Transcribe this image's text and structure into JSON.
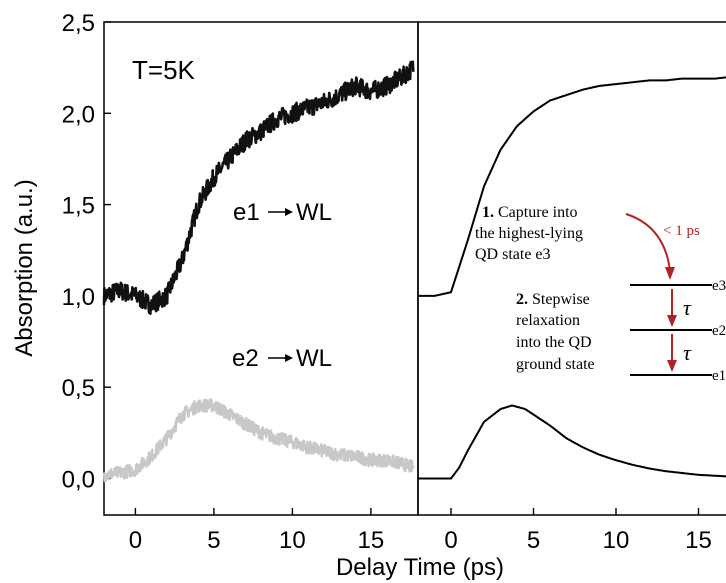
{
  "chart_data": [
    {
      "type": "line",
      "panel": "left",
      "annotation_temperature": "T=5K",
      "xlabel": "Delay Time (ps)",
      "ylabel": "Absorption (a.u.)",
      "xlim": [
        -2,
        18
      ],
      "ylim": [
        -0.2,
        2.5
      ],
      "xticks": [
        0,
        5,
        10,
        15
      ],
      "xtick_labels": [
        "0",
        "5",
        "10",
        "15"
      ],
      "yticks": [
        0.0,
        0.5,
        1.0,
        1.5,
        2.0,
        2.5
      ],
      "ytick_labels": [
        "0,0",
        "0,5",
        "1,0",
        "1,5",
        "2,0",
        "2,5"
      ],
      "series": [
        {
          "name": "e1 → WL",
          "label_prefix": "e1",
          "label_suffix": "WL",
          "color": "#111111",
          "x": [
            -2,
            -1,
            0,
            1,
            2,
            3,
            4,
            5,
            6,
            7,
            8,
            9,
            10,
            11,
            12,
            13,
            14,
            15,
            16,
            17,
            17.7
          ],
          "y": [
            1.0,
            1.03,
            1.0,
            0.95,
            1.0,
            1.2,
            1.5,
            1.65,
            1.75,
            1.85,
            1.9,
            1.97,
            2.0,
            2.03,
            2.06,
            2.1,
            2.15,
            2.12,
            2.15,
            2.2,
            2.25
          ]
        },
        {
          "name": "e2 → WL",
          "label_prefix": "e2",
          "label_suffix": "WL",
          "color": "#c8c8c8",
          "x": [
            -2,
            -1,
            0,
            1,
            2,
            3,
            4,
            5,
            6,
            7,
            8,
            9,
            10,
            11,
            12,
            13,
            14,
            15,
            16,
            17,
            17.7
          ],
          "y": [
            0.02,
            0.03,
            0.05,
            0.12,
            0.22,
            0.35,
            0.4,
            0.4,
            0.35,
            0.3,
            0.25,
            0.22,
            0.2,
            0.17,
            0.15,
            0.13,
            0.12,
            0.1,
            0.1,
            0.08,
            0.06
          ]
        }
      ]
    },
    {
      "type": "line",
      "panel": "right",
      "xlim": [
        -2,
        18
      ],
      "ylim": [
        -0.2,
        2.5
      ],
      "xticks": [
        0,
        5,
        10,
        15
      ],
      "xtick_labels": [
        "0",
        "5",
        "10",
        "15"
      ],
      "series": [
        {
          "color": "#000000",
          "x": [
            -2,
            -1,
            0,
            1,
            2,
            3,
            4,
            5,
            6,
            7,
            8,
            9,
            10,
            11,
            12,
            13,
            14,
            15,
            16,
            17,
            18
          ],
          "y": [
            1.0,
            1.0,
            1.02,
            1.3,
            1.6,
            1.8,
            1.93,
            2.01,
            2.07,
            2.1,
            2.13,
            2.15,
            2.16,
            2.17,
            2.18,
            2.18,
            2.19,
            2.19,
            2.19,
            2.2,
            2.2
          ]
        },
        {
          "color": "#000000",
          "x": [
            -2,
            -1,
            0,
            0.5,
            1,
            2,
            3,
            3.7,
            4.5,
            5,
            6,
            7,
            8,
            9,
            10,
            11,
            12,
            13,
            14,
            15,
            16,
            17,
            18
          ],
          "y": [
            0.0,
            0.0,
            0.0,
            0.06,
            0.15,
            0.31,
            0.38,
            0.4,
            0.38,
            0.35,
            0.29,
            0.22,
            0.17,
            0.13,
            0.1,
            0.075,
            0.055,
            0.04,
            0.03,
            0.02,
            0.015,
            0.01,
            0.005
          ]
        }
      ],
      "inset": {
        "step1_number": "1.",
        "step1_lines": [
          "Capture into",
          "the highest-lying",
          "QD state e3"
        ],
        "capture_time": "< 1 ps",
        "step2_number": "2.",
        "step2_lines": [
          "Stepwise",
          "relaxation",
          "into the QD",
          "ground state"
        ],
        "tau_symbol": "τ",
        "levels": [
          "e3",
          "e2",
          "e1"
        ],
        "arrow_color": "#b22222"
      }
    }
  ]
}
